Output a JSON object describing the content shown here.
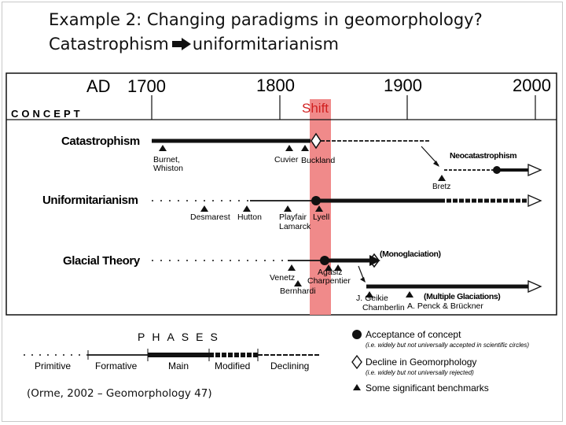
{
  "title": {
    "line1": "Example 2: Changing paradigms in geomorphology?",
    "from_term": "Catastrophism",
    "to_term": "uniformitarianism"
  },
  "citation": "(Orme,  2002 – Geomorphology 47)",
  "timeline": {
    "ad_label": "AD",
    "years": [
      "1700",
      "1800",
      "1900",
      "2000"
    ],
    "concept_header": "CONCEPT",
    "shift_label": "Shift",
    "shift_color": "#f08a8a"
  },
  "concepts": {
    "catastrophism": {
      "label": "Catastrophism",
      "benchmarks": [
        {
          "label": "Burnet, Whiston"
        },
        {
          "label": "Cuvier"
        },
        {
          "label": "Buckland"
        },
        {
          "label": "Bretz"
        }
      ],
      "neo_label": "Neocatastrophism"
    },
    "uniformitarianism": {
      "label": "Uniformitarianism",
      "benchmarks": [
        {
          "label": "Desmarest"
        },
        {
          "label": "Hutton"
        },
        {
          "label": "Playfair Lamarck"
        },
        {
          "label": "Lyell"
        }
      ]
    },
    "glacial": {
      "label": "Glacial Theory",
      "benchmarks": [
        {
          "label": "Venetz"
        },
        {
          "label": "Bernhardi"
        },
        {
          "label": "Agasiz Charpentier"
        },
        {
          "label": "J. Geikie Chamberlin"
        },
        {
          "label": "A. Penck & Brückner"
        }
      ],
      "mono_label": "(Monoglaciation)",
      "multi_label": "(Multiple Glaciations)"
    }
  },
  "phases": {
    "header": "PHASES",
    "items": [
      "Primitive",
      "Formative",
      "Main",
      "Modified",
      "Declining"
    ]
  },
  "legend": {
    "acceptance": {
      "label": "Acceptance of concept",
      "note": "(i.e. widely but not universally accepted in scientific circles)"
    },
    "decline": {
      "label": "Decline in Geomorphology",
      "note": "(i.e. widely but not universally rejected)"
    },
    "benchmarks": {
      "label": "Some significant benchmarks"
    }
  },
  "icons": {
    "title_arrow": "right-arrow-icon",
    "acceptance": "filled-circle-icon",
    "decline": "open-diamond-icon",
    "benchmark": "triangle-icon"
  }
}
